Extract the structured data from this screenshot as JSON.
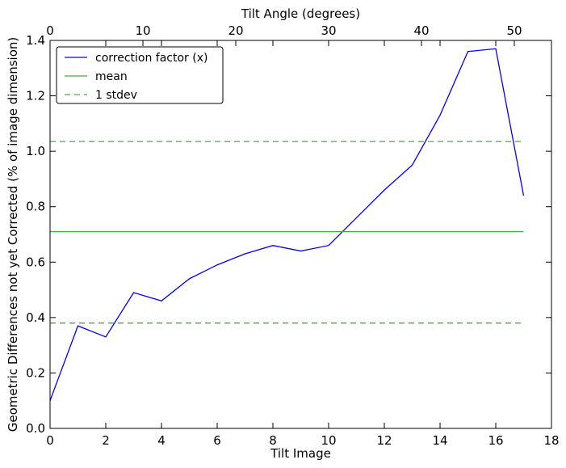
{
  "chart_data": {
    "type": "line",
    "title": "",
    "xlabel": "Tilt Image",
    "ylabel": "Geometric Differences not yet Corrected (% of image dimension)",
    "x2label": "Tilt Angle (degrees)",
    "xlim": [
      0,
      18
    ],
    "ylim": [
      0.0,
      1.4
    ],
    "x2lim": [
      0,
      54
    ],
    "x_ticks": [
      "0",
      "2",
      "4",
      "6",
      "8",
      "10",
      "12",
      "14",
      "16",
      "18"
    ],
    "y_ticks": [
      "0.0",
      "0.2",
      "0.4",
      "0.6",
      "0.8",
      "1.0",
      "1.2",
      "1.4"
    ],
    "x2_ticks": [
      "0",
      "10",
      "20",
      "30",
      "40",
      "50"
    ],
    "grid": false,
    "legend_position": "top-left",
    "series": [
      {
        "name": "correction factor (x)",
        "style": "solid",
        "color": "#0000ff",
        "x": [
          0,
          1,
          2,
          3,
          4,
          5,
          6,
          7,
          8,
          9,
          10,
          11,
          12,
          13,
          14,
          15,
          16,
          17
        ],
        "y": [
          0.1,
          0.37,
          0.33,
          0.49,
          0.46,
          0.54,
          0.59,
          0.63,
          0.66,
          0.64,
          0.66,
          0.76,
          0.86,
          0.95,
          1.13,
          1.36,
          1.37,
          0.84
        ]
      },
      {
        "name": "mean",
        "style": "solid",
        "color": "#4aa64a",
        "x": [
          0,
          17
        ],
        "y": [
          0.71,
          0.71
        ]
      },
      {
        "name": "1 stdev",
        "style": "dashed",
        "color": "#4aa64a",
        "x": [
          0,
          17
        ],
        "y": [
          0.38,
          0.38
        ]
      },
      {
        "name": "",
        "style": "dashed",
        "color": "#4aa64a",
        "x": [
          0,
          17
        ],
        "y": [
          1.035,
          1.035
        ]
      }
    ]
  }
}
